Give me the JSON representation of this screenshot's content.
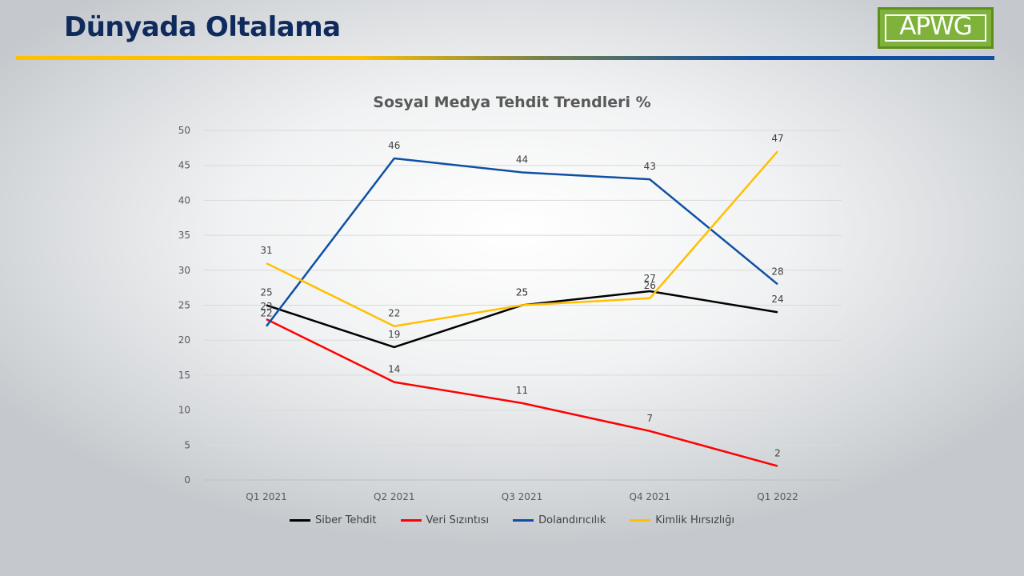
{
  "slide": {
    "title": "Dünyada Oltalama",
    "logo_text": "APWG"
  },
  "chart_data": {
    "type": "line",
    "title": "Sosyal Medya Tehdit Trendleri %",
    "categories": [
      "Q1 2021",
      "Q2 2021",
      "Q3 2021",
      "Q4 2021",
      "Q1 2022"
    ],
    "ylim": [
      0,
      50
    ],
    "yticks": [
      0,
      5,
      10,
      15,
      20,
      25,
      30,
      35,
      40,
      45,
      50
    ],
    "grid": true,
    "legend_position": "bottom",
    "series": [
      {
        "name": "Siber Tehdit",
        "color": "#000000",
        "values": [
          25,
          19,
          25,
          27,
          24
        ]
      },
      {
        "name": "Veri Sızıntısı",
        "color": "#ff0000",
        "values": [
          23,
          14,
          11,
          7,
          2
        ]
      },
      {
        "name": "Dolandırıcılık",
        "color": "#0f4fa3",
        "values": [
          22,
          46,
          44,
          43,
          28
        ]
      },
      {
        "name": "Kimlik Hırsızlığı",
        "color": "#ffc000",
        "values": [
          31,
          22,
          25,
          26,
          47
        ]
      }
    ]
  }
}
